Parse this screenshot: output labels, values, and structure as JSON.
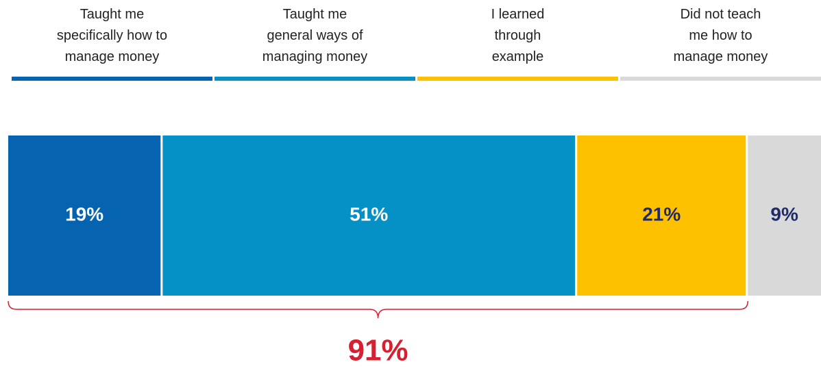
{
  "chart_data": {
    "type": "bar",
    "orientation": "horizontal",
    "stacked": true,
    "xlim": [
      0,
      100
    ],
    "series": [
      {
        "name": "Taught me\nspecifically how to\nmanage money",
        "color": "#0563b0",
        "label_color": "#ffffff",
        "values": [
          19
        ],
        "value_labels": [
          "19%"
        ]
      },
      {
        "name": "Taught me\ngeneral  ways of\nmanaging money",
        "color": "#0590c6",
        "label_color": "#ffffff",
        "values": [
          51
        ],
        "value_labels": [
          "51%"
        ]
      },
      {
        "name": "I learned\nthrough\nexample",
        "color": "#fdc100",
        "label_color": "#1f2a6b",
        "values": [
          21
        ],
        "value_labels": [
          "21%"
        ]
      },
      {
        "name": "Did not teach\nme how to\nmanage money",
        "color": "#d9d9d9",
        "label_color": "#1f2a6b",
        "values": [
          9
        ],
        "value_labels": [
          "9%"
        ]
      }
    ],
    "annotations": [
      {
        "value": 91,
        "label": "91%",
        "color": "#d61f30"
      }
    ]
  }
}
